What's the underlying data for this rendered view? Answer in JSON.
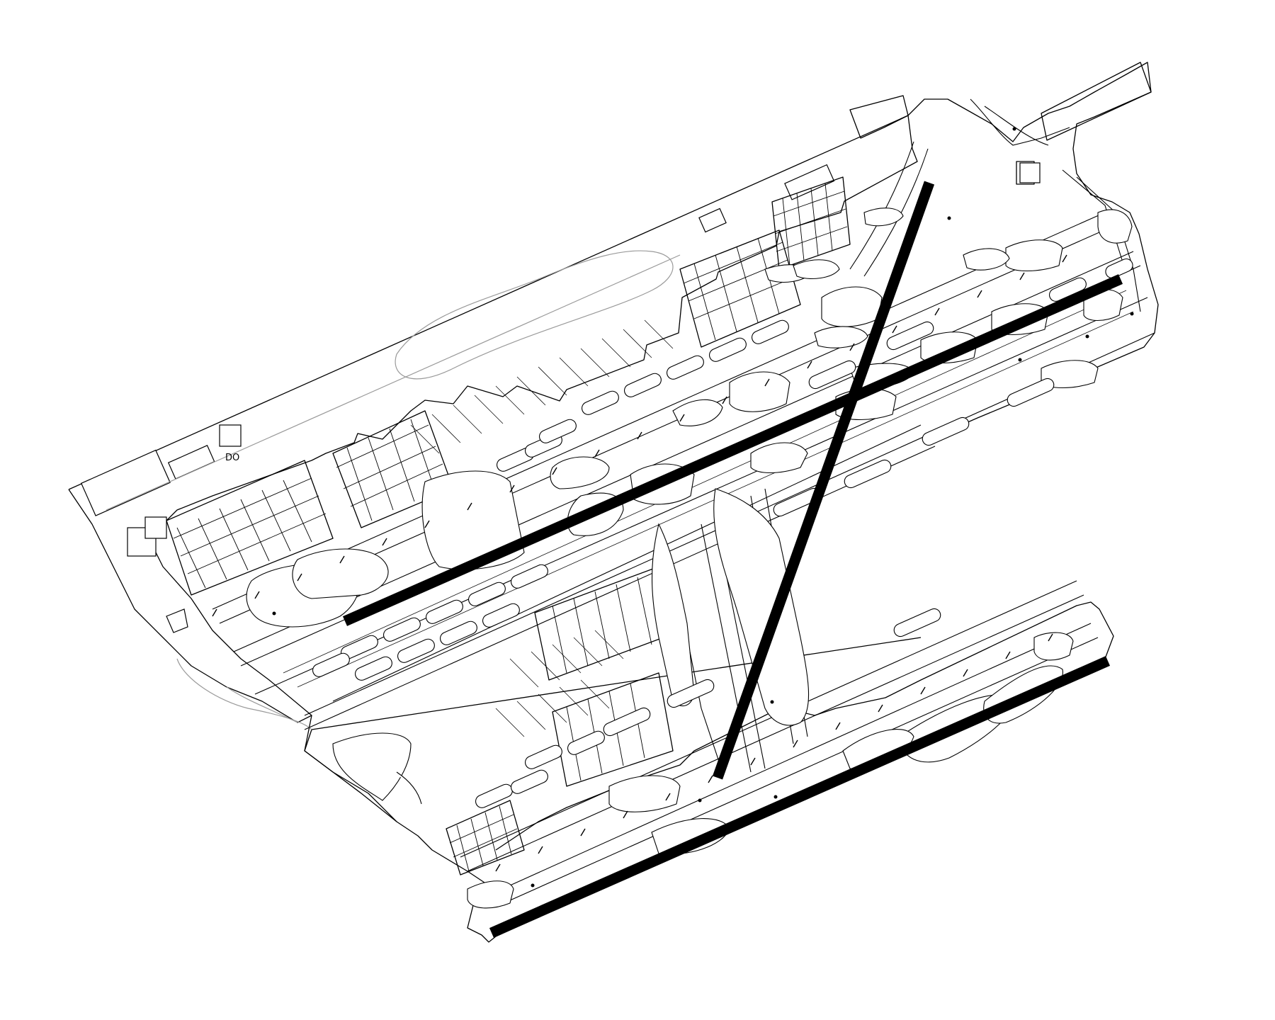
{
  "map": {
    "background": "#ffffff",
    "line_color": "#000000",
    "secondary_line_color": "#9a9a9a",
    "labels": [
      {
        "id": "do-label",
        "text": "DO"
      }
    ],
    "runways": [
      {
        "id": "runway-northeast-diagonal"
      },
      {
        "id": "runway-main-crossing"
      },
      {
        "id": "runway-south-parallel"
      }
    ]
  }
}
